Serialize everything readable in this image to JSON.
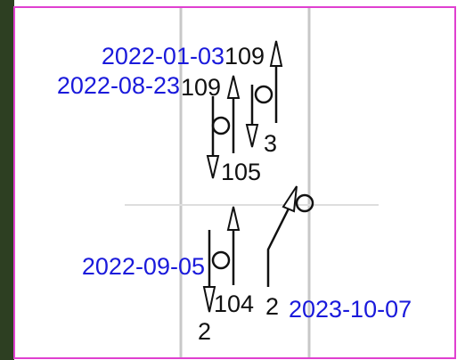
{
  "glyphs": [
    {
      "date": "2022-01-03",
      "upper": "109",
      "lower": "3"
    },
    {
      "date": "2022-08-23",
      "upper": "109",
      "lower": "105"
    },
    {
      "date": "2022-09-05",
      "upper": "104",
      "lower": "2"
    },
    {
      "date": "2023-10-07",
      "upper": "2"
    }
  ]
}
